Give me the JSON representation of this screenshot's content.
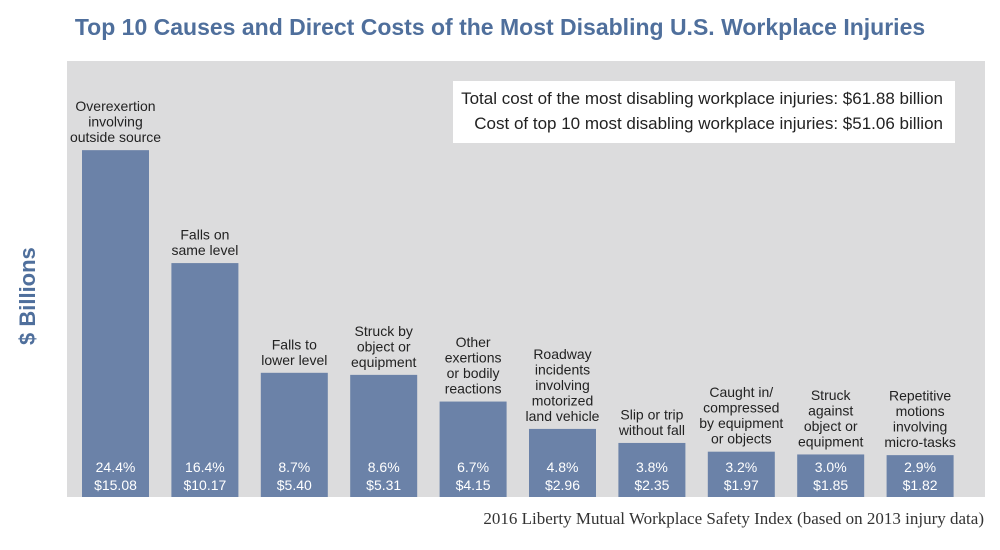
{
  "title": "Top 10 Causes and Direct Costs of the Most Disabling U.S. Workplace Injuries",
  "info": {
    "line1": "Total cost of the most disabling workplace injuries: $61.88 billion",
    "line2": "Cost of top 10 most disabling workplace injuries: $51.06 billion"
  },
  "source": "2016 Liberty Mutual Workplace Safety Index (based on 2013 injury data)",
  "colors": {
    "bar": "#6b82a8",
    "plot_bg": "#dcdcdd",
    "title": "#4f6f9c"
  },
  "chart_data": {
    "type": "bar",
    "title": "Top 10 Causes and Direct Costs of the Most Disabling U.S. Workplace Injuries",
    "xlabel": "",
    "ylabel": "$ Billions",
    "ylim": [
      0,
      17
    ],
    "grid": false,
    "categories": [
      [
        "Overexertion",
        "involving",
        "outside source"
      ],
      [
        "Falls on",
        "same level"
      ],
      [
        "Falls to",
        "lower level"
      ],
      [
        "Struck by",
        "object or",
        "equipment"
      ],
      [
        "Other",
        "exertions",
        "or bodily",
        "reactions"
      ],
      [
        "Roadway",
        "incidents",
        "involving",
        "motorized",
        "land vehicle"
      ],
      [
        "Slip or trip",
        "without fall"
      ],
      [
        "Caught in/",
        "compressed",
        "by equipment",
        "or objects"
      ],
      [
        "Struck",
        "against",
        "object or",
        "equipment"
      ],
      [
        "Repetitive",
        "motions",
        "involving",
        "micro-tasks"
      ]
    ],
    "values": [
      15.08,
      10.17,
      5.4,
      5.31,
      4.15,
      2.96,
      2.35,
      1.97,
      1.85,
      1.82
    ],
    "percent_labels": [
      "24.4%",
      "16.4%",
      "8.7%",
      "8.6%",
      "6.7%",
      "4.8%",
      "3.8%",
      "3.2%",
      "3.0%",
      "2.9%"
    ],
    "value_labels": [
      "$15.08",
      "$10.17",
      "$5.40",
      "$5.31",
      "$4.15",
      "$2.96",
      "$2.35",
      "$1.97",
      "$1.85",
      "$1.82"
    ]
  }
}
